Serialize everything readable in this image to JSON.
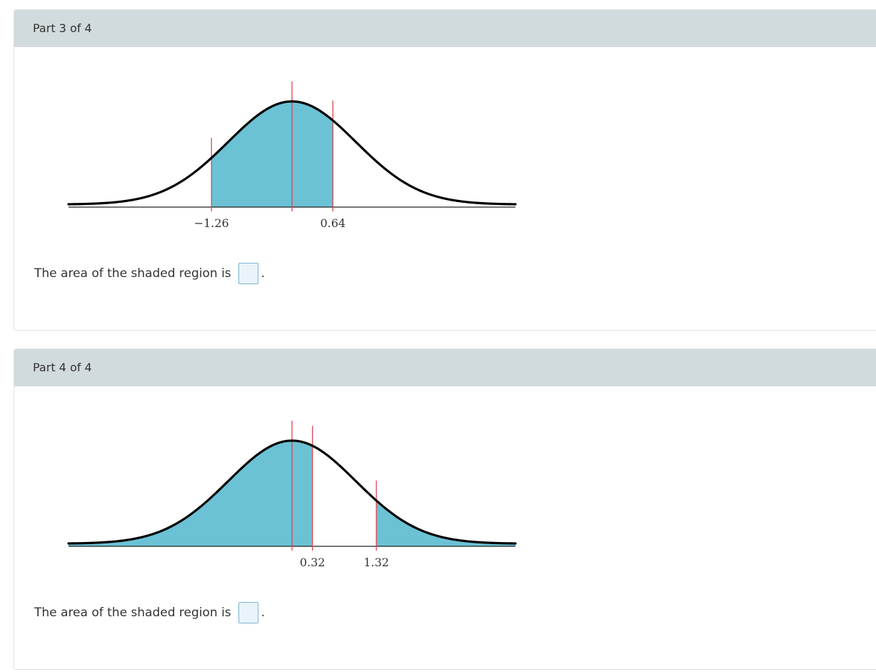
{
  "parts": [
    {
      "title": "Part 3 of 4",
      "question_prefix": "The area of the shaded region is",
      "question_suffix": ".",
      "answer_value": "",
      "chart_data": {
        "type": "area",
        "distribution": "standard-normal",
        "shaded_intervals": [
          [
            -1.26,
            0.64
          ]
        ],
        "reference_lines": [
          -1.26,
          0,
          0.64
        ],
        "tick_labels": [
          {
            "value": -1.26,
            "text": "−1.26"
          },
          {
            "value": 0.64,
            "text": "0.64"
          }
        ],
        "xlim": [
          -3.6,
          3.6
        ],
        "grid": false,
        "fill_color": "#6bc2d5",
        "curve_color": "#000000",
        "line_color": "#e0424e"
      }
    },
    {
      "title": "Part 4 of 4",
      "question_prefix": "The area of the shaded region is",
      "question_suffix": ".",
      "answer_value": "",
      "chart_data": {
        "type": "area",
        "distribution": "standard-normal",
        "shaded_intervals": [
          [
            -3.6,
            0.32
          ],
          [
            1.32,
            3.6
          ]
        ],
        "reference_lines": [
          0,
          0.32,
          1.32
        ],
        "tick_labels": [
          {
            "value": 0.32,
            "text": "0.32"
          },
          {
            "value": 1.32,
            "text": "1.32"
          }
        ],
        "xlim": [
          -3.6,
          3.6
        ],
        "grid": false,
        "fill_color": "#6bc2d5",
        "curve_color": "#000000",
        "line_color": "#e0424e"
      }
    }
  ]
}
